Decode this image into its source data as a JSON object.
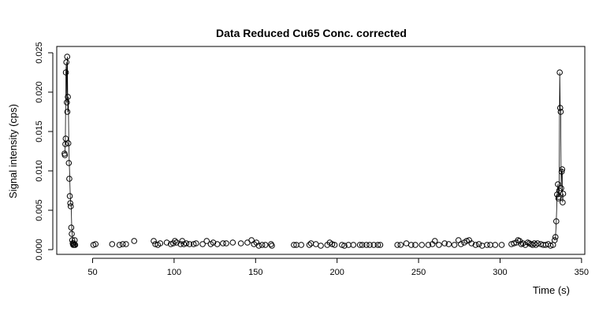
{
  "chart_data": {
    "type": "scatter",
    "title": "Data Reduced Cu65 Conc. corrected",
    "xlabel": "Time (s)",
    "ylabel": "Signal intensity (cps)",
    "xlim": [
      28,
      352
    ],
    "ylim": [
      -0.0006,
      0.0258
    ],
    "x_ticks": [
      50,
      100,
      150,
      200,
      250,
      300,
      350
    ],
    "x_tick_labels": [
      "50",
      "100",
      "150",
      "200",
      "250",
      "300",
      "350"
    ],
    "y_ticks": [
      0,
      0.005,
      0.01,
      0.015,
      0.02,
      0.025
    ],
    "y_tick_labels": [
      "0.000",
      "0.005",
      "0.010",
      "0.015",
      "0.020",
      "0.025"
    ],
    "marker": "open-circle",
    "line_segments": [
      {
        "x": [
          33,
          33.3,
          33.6,
          33.9,
          34.2,
          34.5,
          34.8,
          35.1,
          35.4,
          35.7,
          36.0,
          36.3,
          36.6,
          36.9,
          37.2,
          37.5,
          37.8,
          38.1,
          38.4,
          38.7,
          39.0
        ],
        "y": [
          0.0122,
          0.0141,
          0.0225,
          0.0238,
          0.0187,
          0.0245,
          0.0175,
          0.0194,
          0.0135,
          0.011,
          0.009,
          0.0068,
          0.0059,
          0.0055,
          0.0028,
          0.002,
          0.0012,
          0.0008,
          0.0006,
          0.0008,
          0.0006
        ]
      },
      {
        "x": [
          333.5,
          334.0,
          334.5,
          335.0,
          335.5,
          336.0,
          336.3,
          336.6,
          336.9,
          337.2,
          337.5,
          337.8,
          338.1,
          338.4,
          338.7
        ],
        "y": [
          0.0012,
          0.0016,
          0.0036,
          0.007,
          0.0083,
          0.0067,
          0.0075,
          0.0225,
          0.018,
          0.0175,
          0.0078,
          0.0099,
          0.0102,
          0.006,
          0.0071
        ]
      }
    ],
    "points": {
      "x": [
        32.8,
        33.0,
        33.3,
        33.5,
        33.6,
        33.9,
        34.2,
        34.4,
        34.5,
        34.8,
        35.1,
        35.4,
        35.7,
        36.0,
        36.3,
        36.6,
        36.9,
        37.2,
        37.5,
        37.8,
        38.1,
        38.4,
        38.7,
        39.0,
        39.3,
        50.5,
        51.8,
        62,
        66.5,
        68.5,
        70.5,
        75.5,
        87.5,
        88.5,
        90,
        91.5,
        95.5,
        98,
        99.5,
        100.5,
        101.5,
        104,
        105,
        106,
        107.5,
        109.5,
        112,
        113.5,
        117.5,
        120,
        122.5,
        124,
        126.5,
        130,
        132,
        136,
        141,
        145,
        147.5,
        149,
        150.5,
        152,
        154,
        156,
        159.5,
        160,
        173.5,
        175,
        178,
        183,
        184,
        187,
        190,
        194,
        195.5,
        197,
        198.5,
        203,
        204.5,
        207,
        210,
        214,
        215.5,
        218,
        220,
        222.5,
        225,
        226.5,
        237,
        239,
        242.5,
        245.5,
        248,
        252,
        256,
        258.5,
        260,
        262.5,
        266,
        268.5,
        272,
        274.5,
        276,
        278,
        279.5,
        281,
        282.5,
        285,
        287,
        289,
        292,
        294,
        297,
        301,
        307,
        308.5,
        310,
        311,
        312,
        313,
        314,
        315.5,
        317,
        318,
        319,
        320,
        321,
        322,
        323,
        325,
        326.5,
        328,
        329.5,
        331,
        332.5,
        333.5,
        334.0,
        334.5,
        335.0,
        335.5,
        335.8,
        336.0,
        336.3,
        336.6,
        336.9,
        337.2,
        337.5,
        337.8,
        338.1,
        338.4,
        338.7
      ],
      "y": [
        0.0122,
        0.012,
        0.0134,
        0.0141,
        0.0225,
        0.0238,
        0.0187,
        0.0245,
        0.0175,
        0.0194,
        0.0135,
        0.011,
        0.009,
        0.0068,
        0.0059,
        0.0055,
        0.0028,
        0.002,
        0.0012,
        0.0008,
        0.0006,
        0.0008,
        0.0006,
        0.0012,
        0.0006,
        0.0006,
        0.0007,
        0.0007,
        0.0006,
        0.0007,
        0.0007,
        0.0011,
        0.0011,
        0.0007,
        0.0006,
        0.0008,
        0.0009,
        0.0007,
        0.0008,
        0.0011,
        0.0009,
        0.0007,
        0.0011,
        0.0007,
        0.0008,
        0.0007,
        0.0007,
        0.0008,
        0.0007,
        0.0011,
        0.0007,
        0.0009,
        0.0007,
        0.0008,
        0.0008,
        0.0009,
        0.0008,
        0.0009,
        0.0012,
        0.0007,
        0.0009,
        0.0005,
        0.0006,
        0.0006,
        0.0007,
        0.0005,
        0.0006,
        0.0006,
        0.0006,
        0.0006,
        0.0008,
        0.0007,
        0.0005,
        0.0006,
        0.0009,
        0.0007,
        0.0006,
        0.0006,
        0.0005,
        0.0006,
        0.0006,
        0.0006,
        0.0006,
        0.0006,
        0.0006,
        0.0006,
        0.0006,
        0.0006,
        0.0006,
        0.0006,
        0.0008,
        0.0006,
        0.0006,
        0.0006,
        0.0006,
        0.0007,
        0.0011,
        0.0006,
        0.0008,
        0.0007,
        0.0006,
        0.0012,
        0.0007,
        0.0009,
        0.0011,
        0.0012,
        0.0008,
        0.0006,
        0.0007,
        0.0005,
        0.0006,
        0.0006,
        0.0006,
        0.0006,
        0.0007,
        0.0008,
        0.0009,
        0.0012,
        0.0011,
        0.0007,
        0.0008,
        0.0006,
        0.0009,
        0.0008,
        0.0007,
        0.0006,
        0.0008,
        0.0006,
        0.0008,
        0.0007,
        0.0006,
        0.0006,
        0.0007,
        0.0005,
        0.0006,
        0.0012,
        0.0016,
        0.0036,
        0.007,
        0.0083,
        0.0065,
        0.0067,
        0.0075,
        0.0225,
        0.018,
        0.0175,
        0.0078,
        0.0099,
        0.0102,
        0.006,
        0.0071
      ]
    }
  }
}
